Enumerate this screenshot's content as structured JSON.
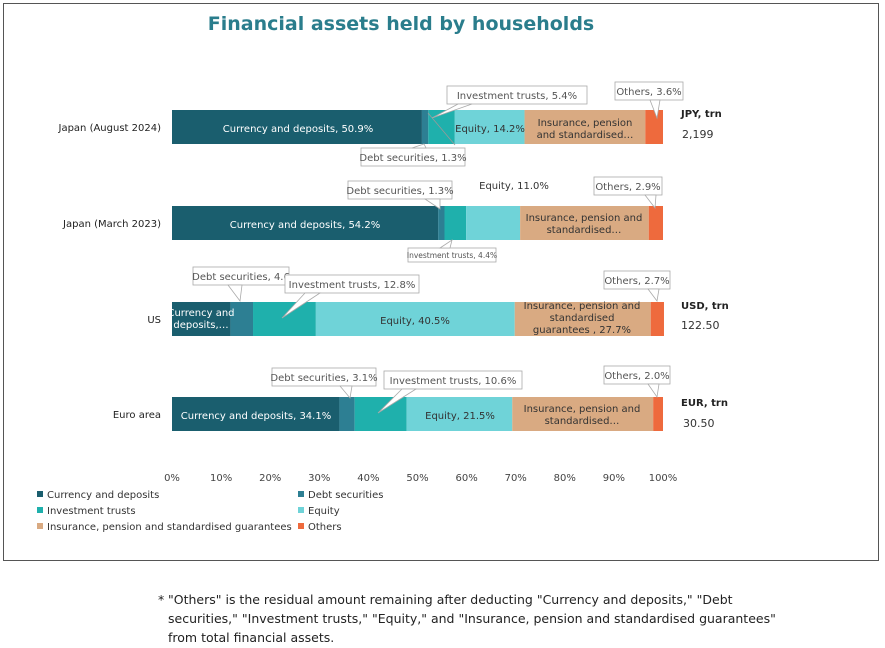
{
  "chart_data": {
    "type": "bar",
    "orientation": "horizontal",
    "stacked": true,
    "title": "Financial assets held by households",
    "xlim": [
      0,
      100
    ],
    "x_ticks": [
      "0%",
      "10%",
      "20%",
      "30%",
      "40%",
      "50%",
      "60%",
      "70%",
      "80%",
      "90%",
      "100%"
    ],
    "legend_position": "bottom-left",
    "categories": [
      "Japan (August 2024)",
      "Japan (March 2023)",
      "US",
      "Euro area"
    ],
    "series": [
      {
        "name": "Currency and deposits",
        "color": "#1a5e6e",
        "values": [
          50.9,
          54.2,
          11.9,
          34.1
        ]
      },
      {
        "name": "Debt securities",
        "color": "#2d7f93",
        "values": [
          1.3,
          1.3,
          4.6,
          3.1
        ]
      },
      {
        "name": "Investment trusts",
        "color": "#1fb0ac",
        "values": [
          5.4,
          4.4,
          12.8,
          10.6
        ]
      },
      {
        "name": "Equity",
        "color": "#6fd3d8",
        "values": [
          14.2,
          11.0,
          40.5,
          21.5
        ]
      },
      {
        "name": "Insurance, pension and standardised guarantees",
        "color": "#d9aa82",
        "values": [
          24.6,
          26.2,
          27.7,
          28.7
        ]
      },
      {
        "name": "Others",
        "color": "#ee6a3d",
        "values": [
          3.6,
          2.9,
          2.7,
          2.0
        ]
      }
    ],
    "totals": [
      {
        "unit": "JPY, trn",
        "value": "2,199"
      },
      {
        "unit": "",
        "value": ""
      },
      {
        "unit": "USD, trn",
        "value": "122.50"
      },
      {
        "unit": "EUR, trn",
        "value": "30.50"
      }
    ],
    "labels": {
      "r0": {
        "currency": "Currency and deposits, 50.9%",
        "investment": "Investment trusts, 5.4%",
        "others": "Others, 3.6%",
        "equity": "Equity, 14.2%",
        "insurance_1": "Insurance, pension",
        "insurance_2": "and standardised…",
        "debt": "Debt securities, 1.3%"
      },
      "r1": {
        "debt": "Debt securities, 1.3%",
        "equity": "Equity, 11.0%",
        "others": "Others, 2.9%",
        "currency": "Currency and deposits, 54.2%",
        "insurance_1": "Insurance, pension and",
        "insurance_2": "standardised…",
        "investment": "Investment trusts, 4.4%"
      },
      "r2": {
        "debt": "Debt securities, 4.6",
        "investment": "Investment trusts, 12.8%",
        "others": "Others, 2.7%",
        "currency_1": "Currency and",
        "currency_2": "deposits,…",
        "equity": "Equity, 40.5%",
        "insurance_1": "Insurance, pension and",
        "insurance_2": "standardised",
        "insurance_3": "guarantees , 27.7%"
      },
      "r3": {
        "debt": "Debt securities, 3.1%",
        "investment": "Investment trusts, 10.6%",
        "others": "Others, 2.0%",
        "currency": "Currency and deposits, 34.1%",
        "equity": "Equity, 21.5%",
        "insurance_1": "Insurance, pension and",
        "insurance_2": "standardised…"
      }
    }
  },
  "footnote": {
    "star": "*",
    "text": "\"Others\" is the residual amount remaining after deducting \"Currency and deposits,\" \"Debt securities,\" \"Investment trusts,\" \"Equity,\" and  \"Insurance, pension and standardised guarantees\" from total financial assets."
  }
}
